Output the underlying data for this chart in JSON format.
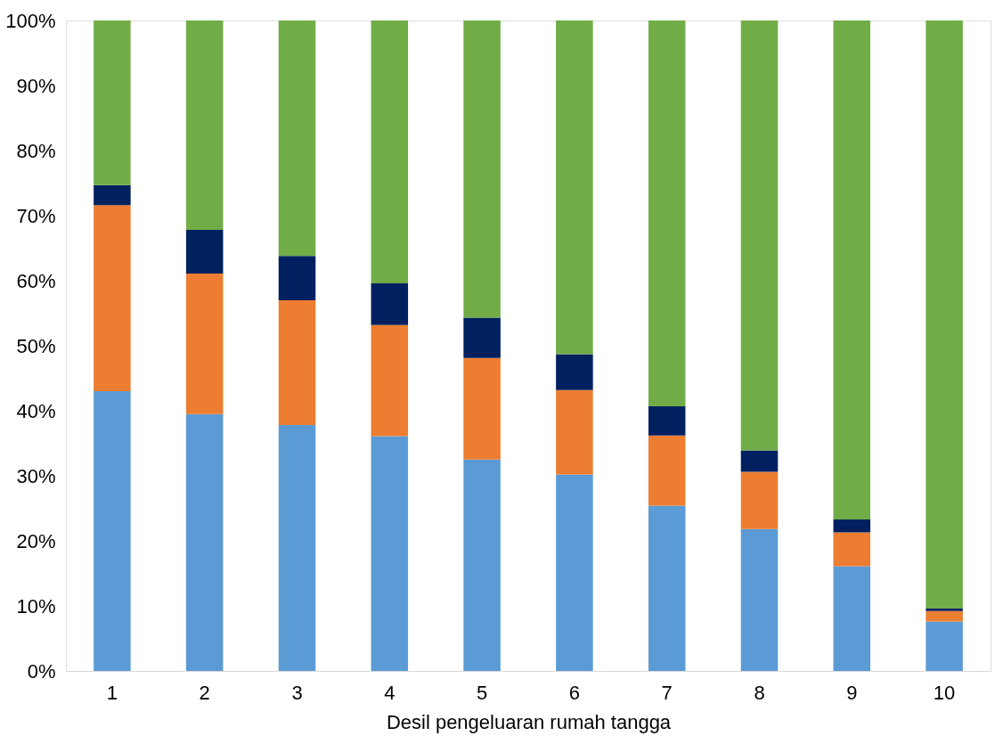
{
  "chart_data": {
    "type": "bar",
    "stacked": true,
    "xlabel": "Desil pengeluaran rumah tangga",
    "categories": [
      "1",
      "2",
      "3",
      "4",
      "5",
      "6",
      "7",
      "8",
      "9",
      "10"
    ],
    "series": [
      {
        "color": "#5b9bd5",
        "values": [
          43.0,
          39.5,
          37.8,
          36.1,
          32.5,
          30.2,
          25.4,
          21.8,
          16.1,
          7.6
        ]
      },
      {
        "color": "#ed7d31",
        "values": [
          28.6,
          21.6,
          19.2,
          17.1,
          15.6,
          13.0,
          10.8,
          8.8,
          5.2,
          1.6
        ]
      },
      {
        "color": "#002060",
        "values": [
          3.1,
          6.7,
          6.8,
          6.4,
          6.2,
          5.5,
          4.5,
          3.3,
          2.0,
          0.4
        ]
      },
      {
        "color": "#70ad47",
        "values": [
          25.3,
          32.2,
          36.2,
          40.4,
          45.7,
          51.3,
          59.3,
          66.1,
          76.7,
          90.4
        ]
      }
    ],
    "ylim": [
      0,
      100
    ],
    "yticks": [
      {
        "value": 0,
        "label": "0%"
      },
      {
        "value": 10,
        "label": "10%"
      },
      {
        "value": 20,
        "label": "20%"
      },
      {
        "value": 30,
        "label": "30%"
      },
      {
        "value": 40,
        "label": "40%"
      },
      {
        "value": 50,
        "label": "50%"
      },
      {
        "value": 60,
        "label": "60%"
      },
      {
        "value": 70,
        "label": "70%"
      },
      {
        "value": 80,
        "label": "80%"
      },
      {
        "value": 90,
        "label": "90%"
      },
      {
        "value": 100,
        "label": "100%"
      }
    ],
    "grid": false,
    "legend": false
  }
}
